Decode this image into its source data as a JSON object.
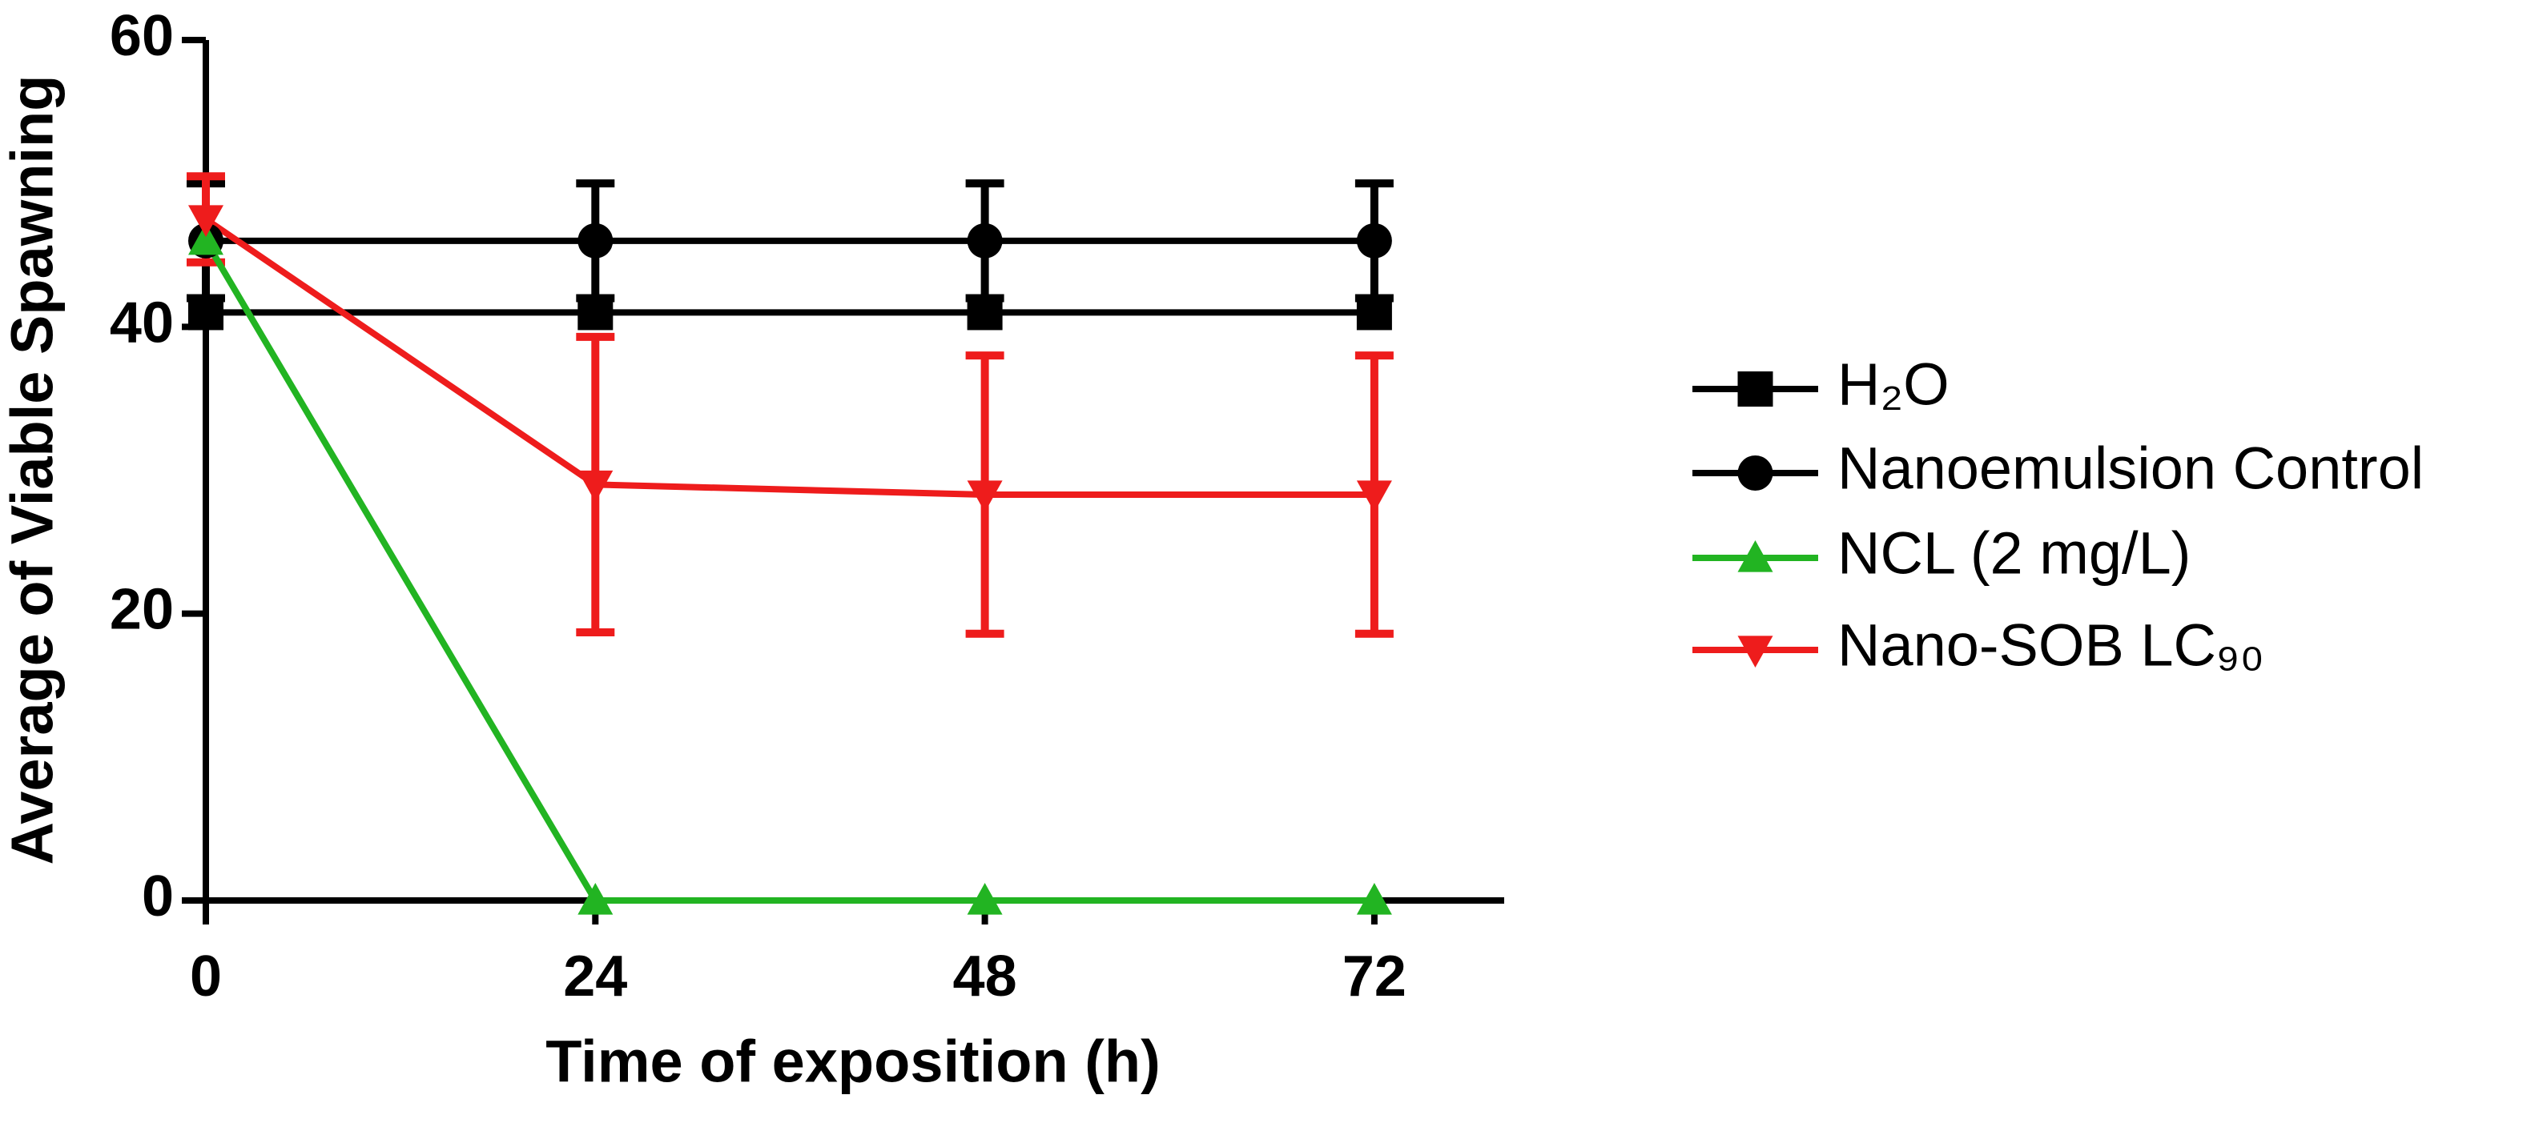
{
  "chart_data": {
    "type": "line",
    "x_label": "Time of exposition (h)",
    "y_label": "Average of Viable Spawning",
    "x": [
      0,
      24,
      48,
      72
    ],
    "xlim": [
      0,
      80
    ],
    "xticks": [
      0,
      24,
      48,
      72
    ],
    "ylim": [
      0,
      60
    ],
    "yticks": [
      0,
      20,
      40,
      60
    ],
    "series": [
      {
        "name": "H₂O",
        "color": "#000000",
        "marker": "square",
        "values": [
          41,
          41,
          41,
          41
        ]
      },
      {
        "name": "Nanoemulsion Control",
        "color": "#000000",
        "marker": "circle",
        "values": [
          46,
          46,
          46,
          46
        ],
        "errors": [
          4,
          4,
          4,
          4
        ]
      },
      {
        "name": "NCL (2 mg/L)",
        "color": "#22b422",
        "marker": "triangle-up",
        "values": [
          46,
          0,
          0,
          0
        ]
      },
      {
        "name": "Nano-SOB LC₉₀",
        "color": "#ee1c1c",
        "marker": "triangle-down",
        "values": [
          47.5,
          29,
          28.3,
          28.3
        ],
        "errors": [
          3,
          10.3,
          9.7,
          9.7
        ]
      }
    ]
  }
}
